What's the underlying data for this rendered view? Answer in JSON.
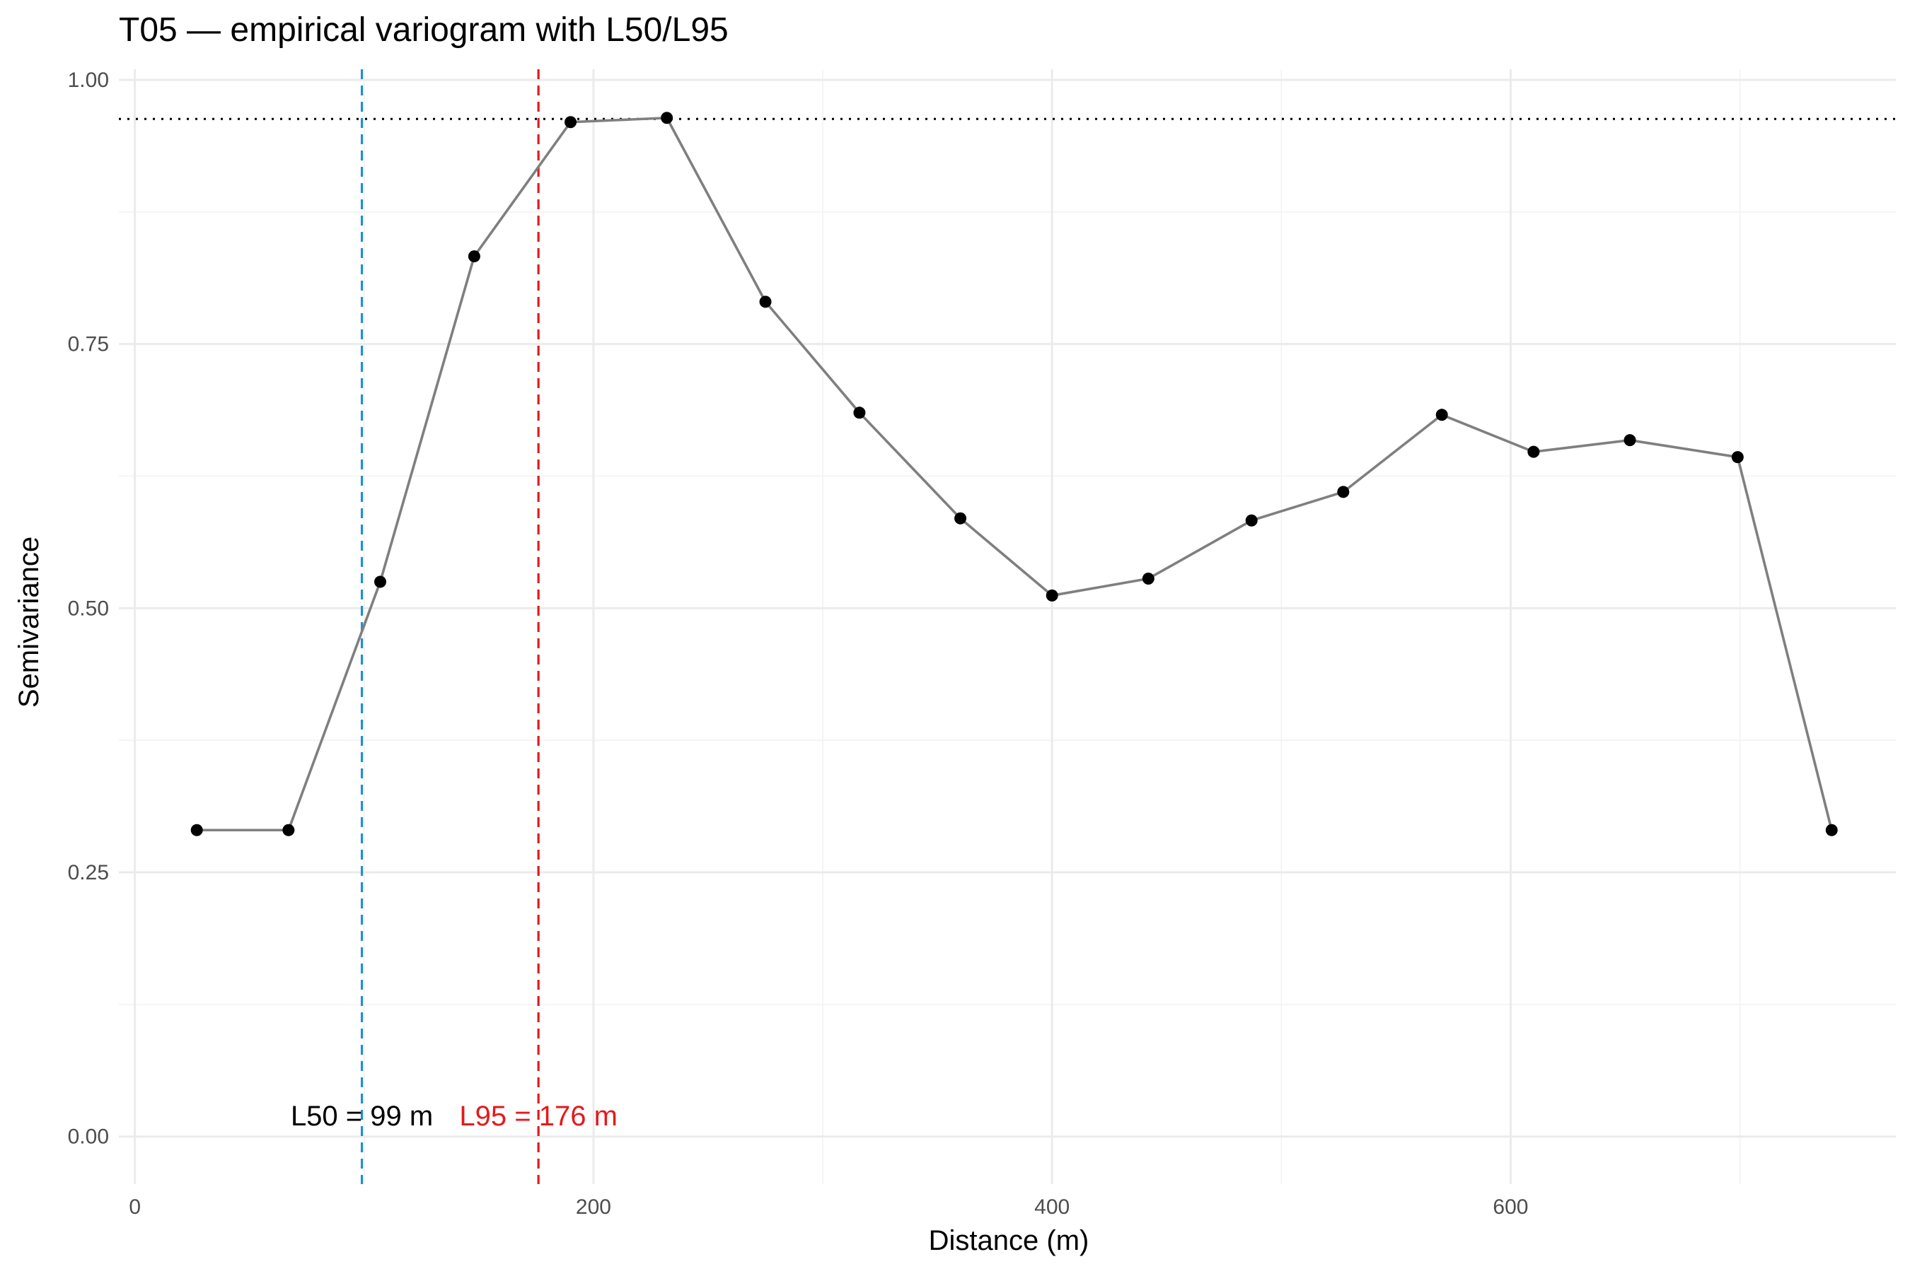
{
  "chart_data": {
    "type": "line",
    "title": "T05 — empirical variogram with L50/L95",
    "xlabel": "Distance (m)",
    "ylabel": "Semivariance",
    "xlim": [
      -7,
      768
    ],
    "ylim": [
      -0.045,
      1.01
    ],
    "x_ticks": [
      0,
      200,
      400,
      600
    ],
    "x_tick_labels": [
      "0",
      "200",
      "400",
      "600"
    ],
    "y_ticks": [
      0,
      0.25,
      0.5,
      0.75,
      1.0
    ],
    "y_tick_labels": [
      "0.00",
      "0.25",
      "0.50",
      "0.75",
      "1.00"
    ],
    "grid": true,
    "series": [
      {
        "x": [
          27,
          67,
          107,
          148,
          190,
          232,
          275,
          316,
          360,
          400,
          442,
          487,
          527,
          570,
          610,
          652,
          699,
          740
        ],
        "y": [
          0.29,
          0.29,
          0.525,
          0.833,
          0.96,
          0.964,
          0.79,
          0.685,
          0.585,
          0.512,
          0.528,
          0.583,
          0.61,
          0.683,
          0.648,
          0.659,
          0.643,
          0.29
        ],
        "line_color": "#7f7f7f",
        "point_color": "#000000"
      }
    ],
    "reference_lines": [
      {
        "type": "horizontal",
        "y": 0.963,
        "color": "#000000",
        "style": "dotted"
      },
      {
        "type": "vertical",
        "x": 99,
        "color": "#1f8fd1",
        "style": "dashed",
        "label": "L50 = 99 m",
        "label_color": "#000000",
        "label_y": 0.02
      },
      {
        "type": "vertical",
        "x": 176,
        "color": "#e31a1c",
        "style": "dashed",
        "label": "L95 = 176 m",
        "label_color": "#e31a1c",
        "label_y": 0.02
      }
    ]
  }
}
